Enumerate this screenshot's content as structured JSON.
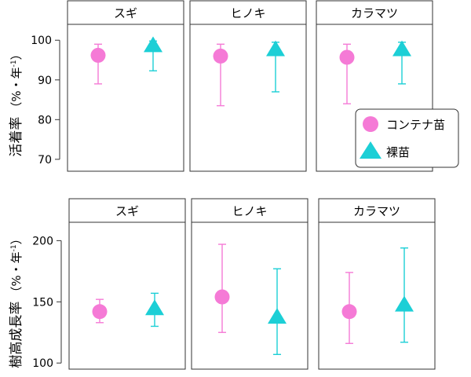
{
  "colors": {
    "container": "#f57ad6",
    "bare": "#1ccfd6"
  },
  "legend": [
    {
      "name": "コンテナ苗",
      "shape": "circle",
      "color": "#f57ad6"
    },
    {
      "name": "裸苗",
      "shape": "triangle",
      "color": "#1ccfd6"
    }
  ],
  "chart_data": [
    {
      "type": "scatter",
      "ylabel": "活着率（%・年-1）",
      "ylabel_main": "活着率",
      "ylabel_unit": "（%・年",
      "ylabel_sup": "-1",
      "ylabel_close": "）",
      "ylim": [
        67,
        104
      ],
      "yticks": [
        70,
        80,
        90,
        100
      ],
      "panels": [
        "スギ",
        "ヒノキ",
        "カラマツ"
      ],
      "series": [
        {
          "name": "コンテナ苗",
          "values": [
            96.2,
            96.0,
            95.7
          ],
          "lower": [
            89.0,
            83.5,
            84.0
          ],
          "upper": [
            99.0,
            99.0,
            99.0
          ]
        },
        {
          "name": "裸苗",
          "values": [
            98.5,
            97.5,
            97.5
          ],
          "lower": [
            92.3,
            87.0,
            89.0
          ],
          "upper": [
            99.8,
            99.5,
            99.5
          ]
        }
      ]
    },
    {
      "type": "scatter",
      "ylabel": "樹高成長率（%・年-1）",
      "ylabel_main": "樹高成長率",
      "ylabel_unit": "（%・年",
      "ylabel_sup": "-1",
      "ylabel_close": "）",
      "ylim": [
        95,
        215
      ],
      "yticks": [
        100,
        150,
        200
      ],
      "panels": [
        "スギ",
        "ヒノキ",
        "カラマツ"
      ],
      "series": [
        {
          "name": "コンテナ苗",
          "values": [
            142,
            154,
            142
          ],
          "lower": [
            133,
            125,
            116
          ],
          "upper": [
            152,
            197,
            174
          ]
        },
        {
          "name": "裸苗",
          "values": [
            144,
            137,
            147
          ],
          "lower": [
            130,
            107,
            117
          ],
          "upper": [
            157,
            177,
            194
          ]
        }
      ]
    }
  ]
}
